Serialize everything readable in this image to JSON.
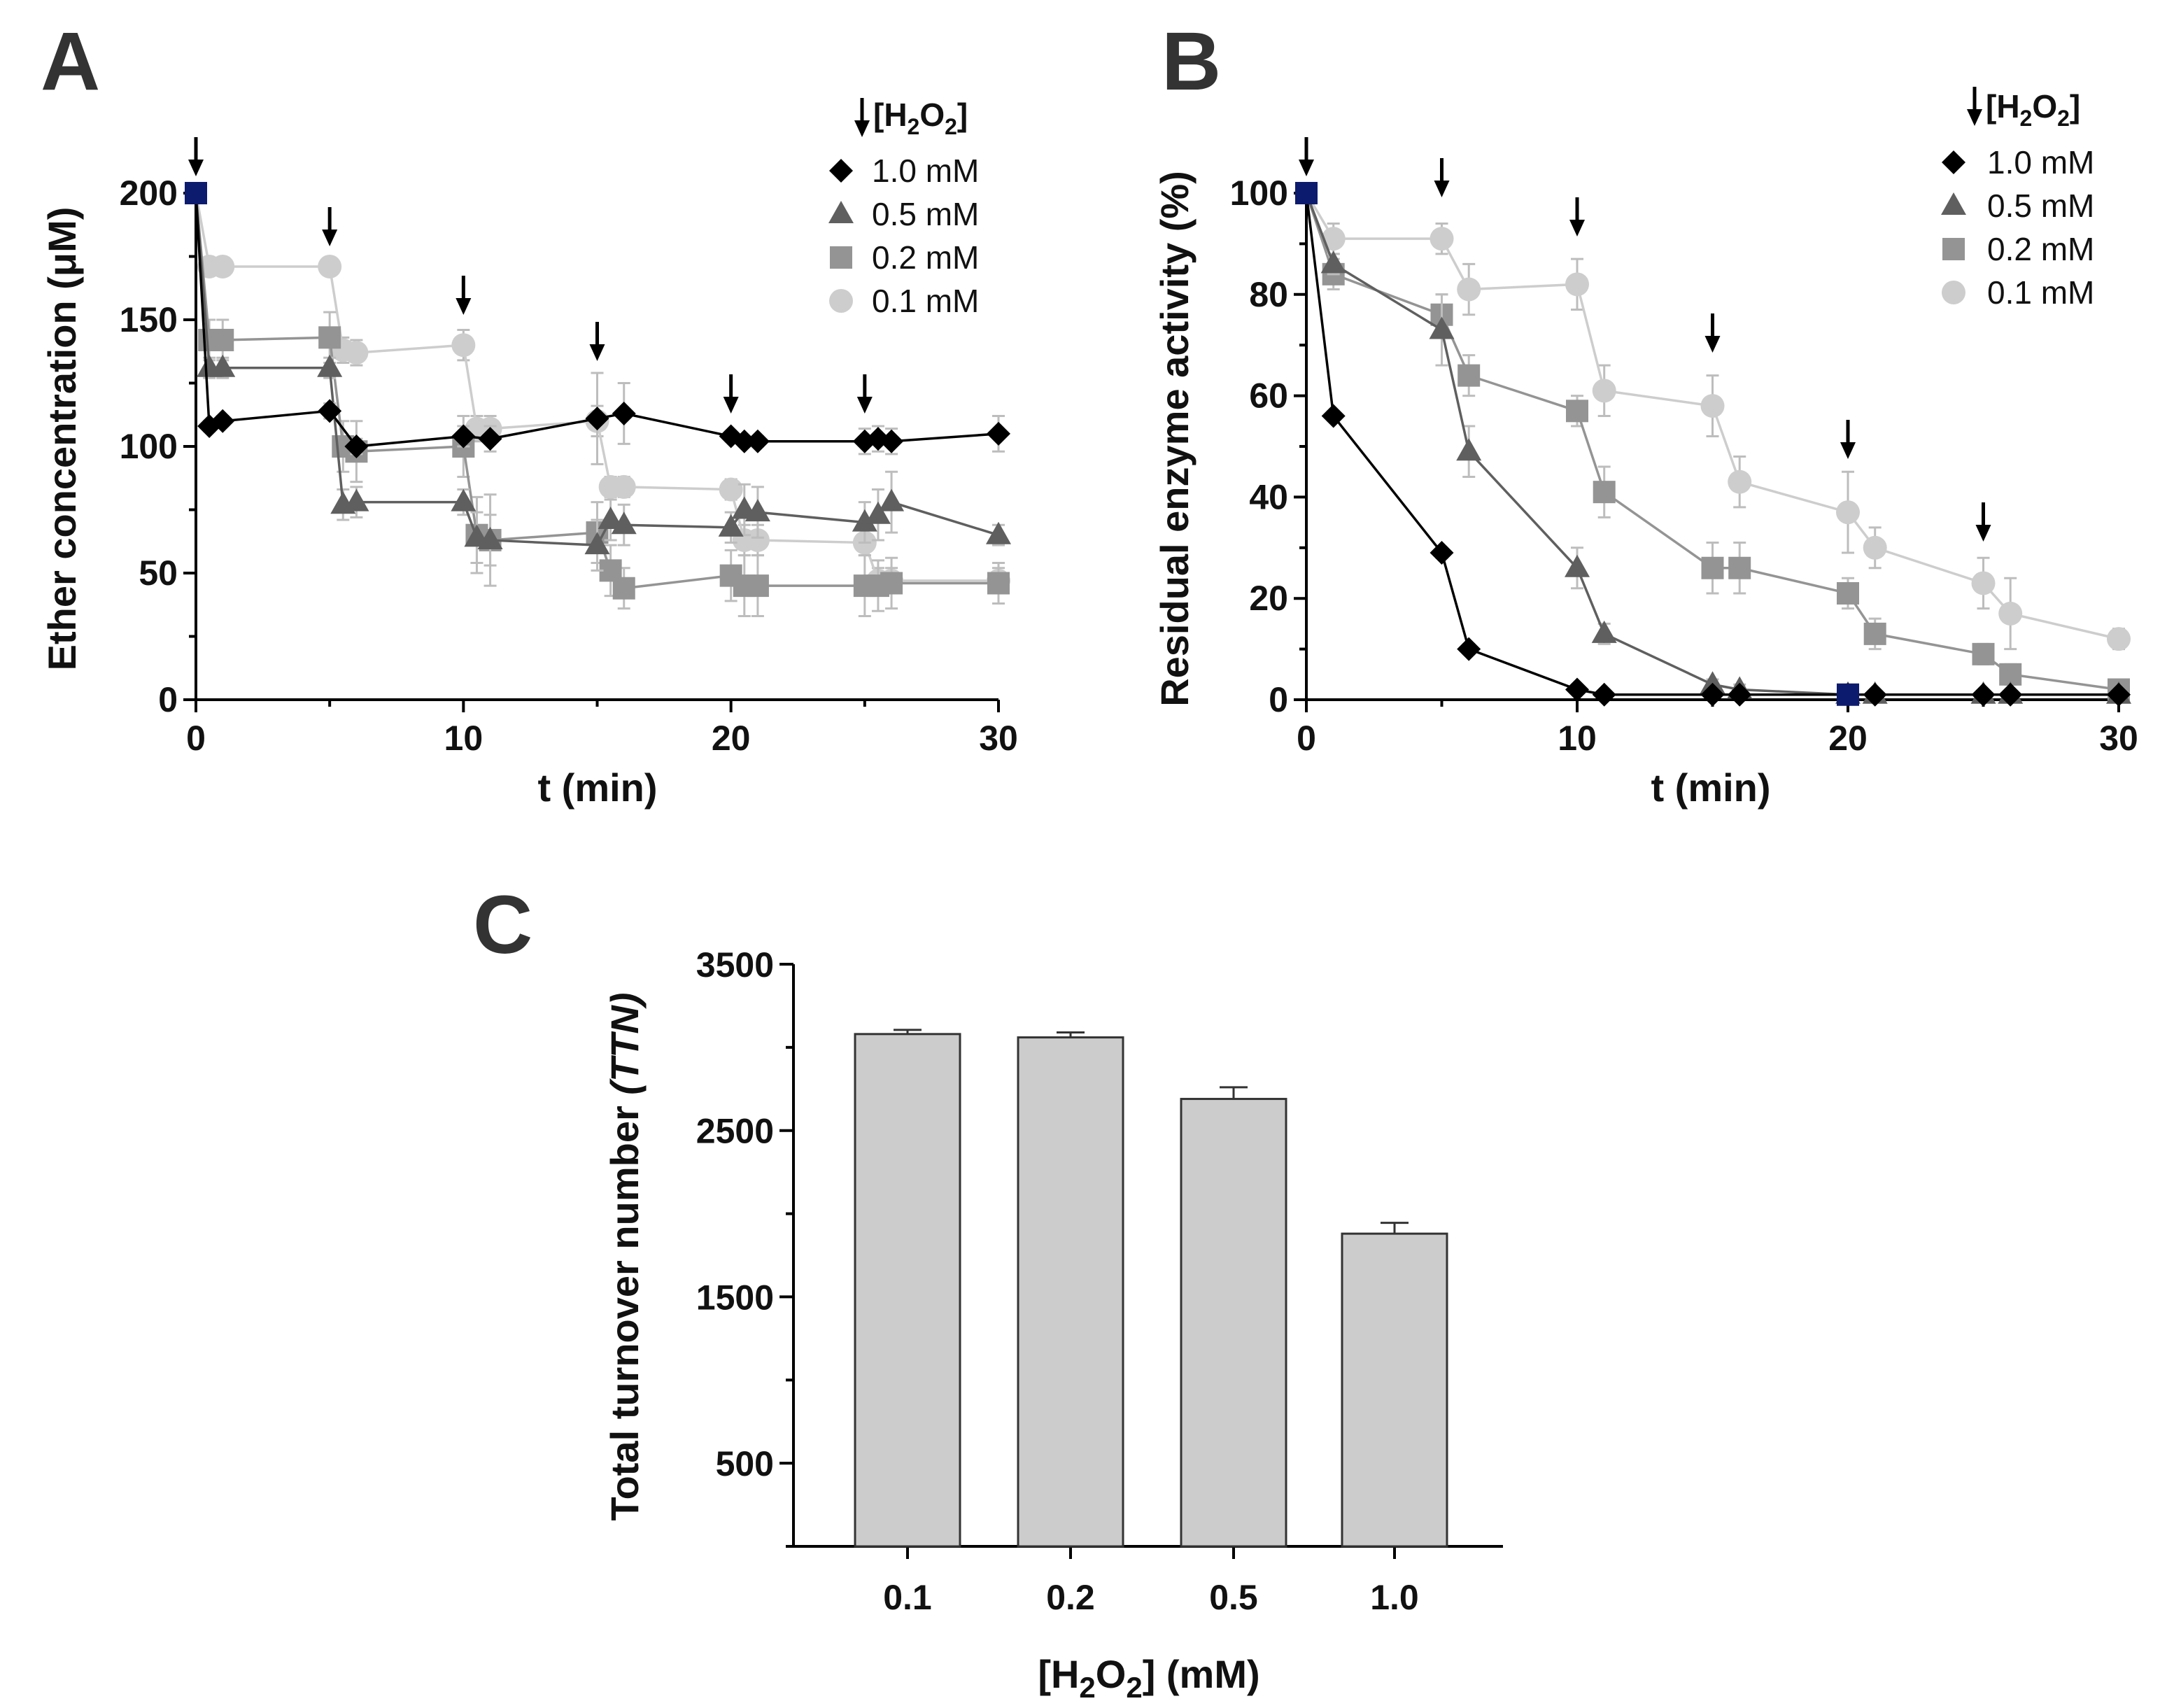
{
  "chart_data": [
    {
      "id": "A",
      "panel_label": "A",
      "type": "line",
      "xlabel": "t (min)",
      "ylabel": "Ether concentration (μM)",
      "xlim": [
        0,
        30
      ],
      "ylim": [
        0,
        200
      ],
      "xticks": [
        "0",
        "10",
        "20",
        "30"
      ],
      "yticks": [
        "0",
        "50",
        "100",
        "150",
        "200"
      ],
      "legend": {
        "title_prefix": "[H",
        "sub1": "2",
        "mid": "O",
        "sub2": "2",
        "suffix": "]",
        "location": "top-right"
      },
      "additions_at": [
        0,
        5,
        10,
        15,
        20,
        25
      ],
      "initial_point": {
        "x": 0,
        "y": 200
      },
      "series": [
        {
          "name": "1.0 mM",
          "marker": "diamond",
          "color": "#000000",
          "x": [
            0,
            0.5,
            1,
            5,
            6,
            10,
            11,
            15,
            16,
            20,
            20.5,
            21,
            25,
            25.5,
            26,
            30
          ],
          "y": [
            200,
            108,
            110,
            114,
            100,
            104,
            103,
            111,
            113,
            104,
            102,
            102,
            102,
            103,
            102,
            105
          ],
          "err": [
            0,
            2,
            2,
            3,
            3,
            4,
            5,
            18,
            12,
            2,
            2,
            2,
            5,
            5,
            5,
            7
          ]
        },
        {
          "name": "0.5 mM",
          "marker": "triangle",
          "color": "#5f5f5f",
          "x": [
            0,
            0.5,
            1,
            5,
            5.5,
            6,
            10,
            10.5,
            11,
            15,
            15.5,
            16,
            20,
            20.5,
            21,
            25,
            25.5,
            26,
            30
          ],
          "y": [
            200,
            131,
            131,
            131,
            77,
            78,
            78,
            64,
            63,
            61,
            71,
            69,
            68,
            75,
            74,
            70,
            73,
            78,
            65
          ],
          "err": [
            0,
            4,
            4,
            4,
            6,
            6,
            5,
            10,
            10,
            10,
            8,
            8,
            6,
            10,
            10,
            8,
            10,
            12,
            4
          ]
        },
        {
          "name": "0.2 mM",
          "marker": "square",
          "color": "#949494",
          "x": [
            0,
            0.5,
            1,
            5,
            5.5,
            6,
            10,
            10.5,
            11,
            15,
            15.5,
            16,
            20,
            20.5,
            21,
            25,
            25.5,
            26,
            30
          ],
          "y": [
            200,
            142,
            142,
            143,
            100,
            98,
            100,
            65,
            63,
            66,
            51,
            44,
            49,
            45,
            45,
            45,
            45,
            46,
            46
          ],
          "err": [
            0,
            8,
            8,
            10,
            10,
            12,
            12,
            15,
            18,
            12,
            10,
            8,
            10,
            12,
            12,
            12,
            10,
            10,
            8
          ]
        },
        {
          "name": "0.1 mM",
          "marker": "circle",
          "color": "#cdcdcd",
          "x": [
            0,
            0.5,
            1,
            5,
            5.5,
            6,
            10,
            10.5,
            11,
            15,
            15.5,
            16,
            20,
            20.5,
            21,
            25,
            25.5,
            26,
            30
          ],
          "y": [
            200,
            171,
            171,
            171,
            138,
            137,
            140,
            107,
            107,
            110,
            84,
            84,
            83,
            63,
            63,
            62,
            47,
            47,
            47
          ],
          "err": [
            0,
            3,
            3,
            3,
            5,
            5,
            6,
            5,
            5,
            6,
            4,
            4,
            4,
            6,
            6,
            5,
            5,
            5,
            5
          ]
        }
      ]
    },
    {
      "id": "B",
      "panel_label": "B",
      "type": "line",
      "xlabel": "t (min)",
      "ylabel": "Residual enzyme activity (%)",
      "xlim": [
        0,
        30
      ],
      "ylim": [
        0,
        100
      ],
      "xticks": [
        "0",
        "10",
        "20",
        "30"
      ],
      "yticks": [
        "0",
        "20",
        "40",
        "60",
        "80",
        "100"
      ],
      "legend": {
        "title_prefix": "[H",
        "sub1": "2",
        "mid": "O",
        "sub2": "2",
        "suffix": "]",
        "location": "top-right"
      },
      "additions_at": [
        0,
        5,
        10,
        15,
        20,
        25
      ],
      "initial_point": {
        "x": 0,
        "y": 100
      },
      "final_point": {
        "x": 20,
        "y": 1
      },
      "series": [
        {
          "name": "1.0 mM",
          "marker": "diamond",
          "color": "#000000",
          "x": [
            0,
            1,
            5,
            6,
            10,
            11,
            15,
            16,
            20,
            21,
            25,
            26,
            30
          ],
          "y": [
            100,
            56,
            29,
            10,
            2,
            1,
            1,
            1,
            1,
            1,
            1,
            1,
            1
          ],
          "err": [
            0,
            1,
            1,
            1,
            0.5,
            0.5,
            0.5,
            0.5,
            0.5,
            0.5,
            0.5,
            0.5,
            0.5
          ]
        },
        {
          "name": "0.5 mM",
          "marker": "triangle",
          "color": "#5f5f5f",
          "x": [
            0,
            1,
            5,
            6,
            10,
            11,
            15,
            16,
            20,
            21,
            25,
            26,
            30
          ],
          "y": [
            100,
            86,
            73,
            49,
            26,
            13,
            3,
            2,
            1,
            1,
            1,
            1,
            1
          ],
          "err": [
            0,
            2,
            7,
            5,
            4,
            2,
            1,
            1,
            0.5,
            0.5,
            0.5,
            0.5,
            0.5
          ]
        },
        {
          "name": "0.2 mM",
          "marker": "square",
          "color": "#949494",
          "x": [
            0,
            1,
            5,
            6,
            10,
            11,
            15,
            16,
            20,
            21,
            25,
            26,
            30
          ],
          "y": [
            100,
            84,
            76,
            64,
            57,
            41,
            26,
            26,
            21,
            13,
            9,
            5,
            2
          ],
          "err": [
            0,
            3,
            4,
            4,
            3,
            5,
            5,
            5,
            3,
            3,
            2,
            2,
            1
          ]
        },
        {
          "name": "0.1 mM",
          "marker": "circle",
          "color": "#cdcdcd",
          "x": [
            0,
            1,
            5,
            6,
            10,
            11,
            15,
            16,
            20,
            21,
            25,
            26,
            30
          ],
          "y": [
            100,
            91,
            91,
            81,
            82,
            61,
            58,
            43,
            37,
            30,
            23,
            17,
            12
          ],
          "err": [
            0,
            3,
            3,
            5,
            5,
            5,
            6,
            5,
            8,
            4,
            5,
            7,
            2
          ]
        }
      ]
    },
    {
      "id": "C",
      "panel_label": "C",
      "type": "bar",
      "xlabel_prefix": "[H",
      "xlabel_sub1": "2",
      "xlabel_mid": "O",
      "xlabel_sub2": "2",
      "xlabel_suffix": "] (mM)",
      "ylabel": "Total turnover number",
      "ylabel_italic": "(TTN)",
      "ylim": [
        0,
        3500
      ],
      "yticks": [
        "500",
        "1500",
        "2500",
        "3500"
      ],
      "categories": [
        "0.1",
        "0.2",
        "0.5",
        "1.0"
      ],
      "values": [
        3080,
        3060,
        2690,
        1880
      ],
      "errors": [
        25,
        30,
        70,
        65
      ],
      "bar_color": "#cccccc"
    }
  ]
}
